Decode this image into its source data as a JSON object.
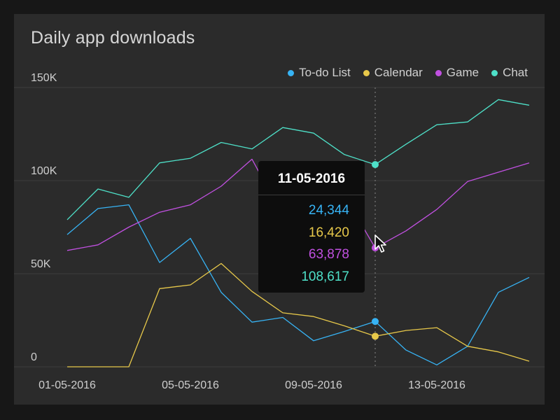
{
  "chart_data": {
    "type": "line",
    "title": "Daily app downloads",
    "x": [
      "01-05-2016",
      "02-05-2016",
      "03-05-2016",
      "04-05-2016",
      "05-05-2016",
      "06-05-2016",
      "07-05-2016",
      "08-05-2016",
      "09-05-2016",
      "10-05-2016",
      "11-05-2016",
      "12-05-2016",
      "13-05-2016",
      "14-05-2016",
      "15-05-2016",
      "16-05-2016"
    ],
    "x_tick_labels": [
      "01-05-2016",
      "05-05-2016",
      "09-05-2016",
      "13-05-2016"
    ],
    "x_tick_dates": [
      "01-05-2016",
      "05-05-2016",
      "09-05-2016",
      "13-05-2016"
    ],
    "ylim": [
      0,
      150000
    ],
    "y_ticks": [
      0,
      50000,
      100000,
      150000
    ],
    "y_tick_labels": [
      "0",
      "50K",
      "100K",
      "150K"
    ],
    "grid": true,
    "legend_position": "top-right",
    "series": [
      {
        "name": "To-do List",
        "color": "#37b3f4",
        "values": [
          71000,
          85000,
          87000,
          56000,
          69000,
          40000,
          24000,
          26500,
          14000,
          19000,
          24344,
          9000,
          1000,
          11000,
          40000,
          48000
        ]
      },
      {
        "name": "Calendar",
        "color": "#e7c84a",
        "values": [
          0,
          0,
          0,
          42000,
          44000,
          55500,
          40500,
          29000,
          27000,
          22000,
          16420,
          19500,
          21000,
          11000,
          8000,
          3000
        ]
      },
      {
        "name": "Game",
        "color": "#c050e0",
        "values": [
          62500,
          65500,
          75000,
          83000,
          87000,
          97000,
          111500,
          81000,
          95000,
          92000,
          63878,
          73000,
          84500,
          99500,
          104500,
          109500
        ]
      },
      {
        "name": "Chat",
        "color": "#4ee0c8",
        "values": [
          79000,
          95500,
          91000,
          109500,
          112000,
          120500,
          117000,
          128500,
          125500,
          114000,
          108617,
          119500,
          130000,
          131500,
          143500,
          140500
        ]
      }
    ],
    "hover": {
      "date": "11-05-2016",
      "index": 10,
      "values": [
        "24,344",
        "16,420",
        "63,878",
        "108,617"
      ]
    }
  }
}
